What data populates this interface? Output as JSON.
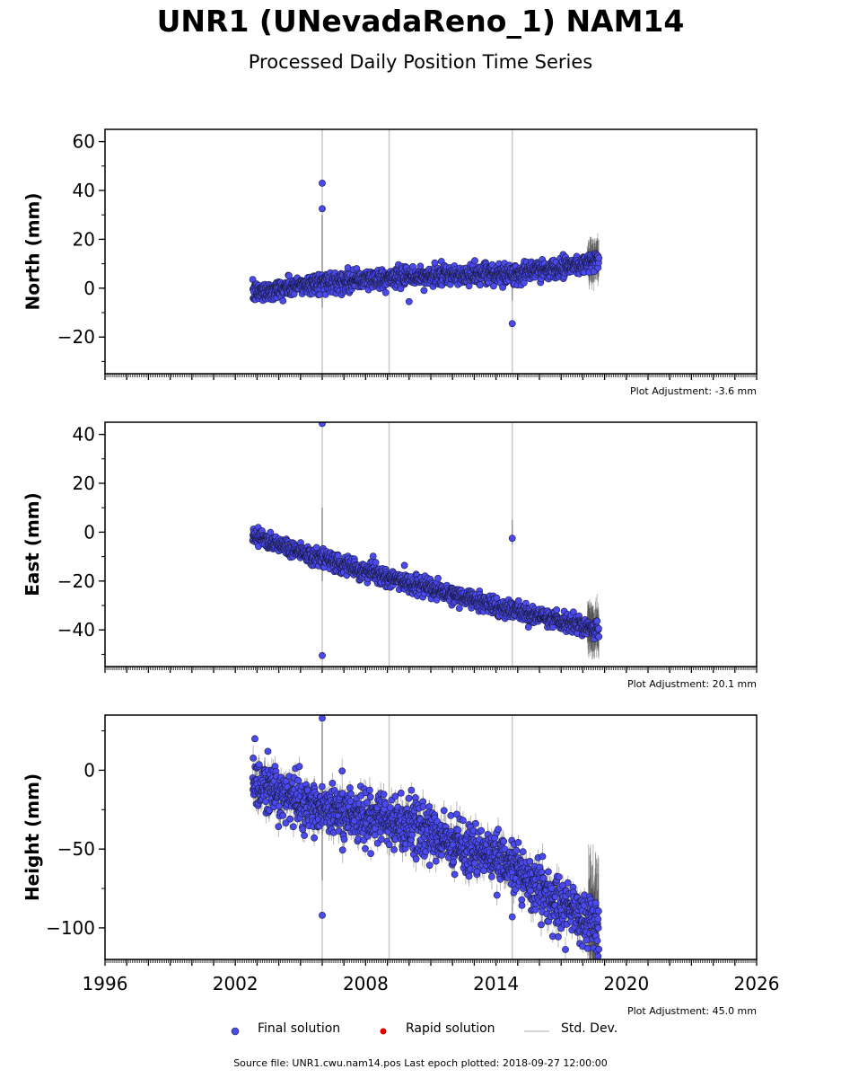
{
  "title": "UNR1 (UNevadaReno_1) NAM14",
  "subtitle": "Processed Daily Position Time Series",
  "source_line": "Source file: UNR1.cwu.nam14.pos  Last epoch plotted: 2018-09-27 12:00:00",
  "legend": {
    "final": "Final solution",
    "rapid": "Rapid solution",
    "std": "Std. Dev.",
    "colors": {
      "final": "#4a4af0",
      "rapid": "#e00000",
      "std": "#c8c8c8"
    }
  },
  "chart_data": [
    {
      "type": "scatter",
      "panel": "north",
      "ylabel": "North (mm)",
      "adjustment": "Plot Adjustment: -3.6 mm",
      "xlim": [
        1996,
        2026
      ],
      "ylim": [
        -35,
        65
      ],
      "yticks": [
        -20,
        0,
        20,
        40,
        60
      ],
      "ytick_labels": [
        "−20",
        "0",
        "20",
        "40",
        "60"
      ],
      "start": 2002.8,
      "end": 2018.74,
      "trend": [
        [
          2002.8,
          -2
        ],
        [
          2006.0,
          2.5
        ],
        [
          2010,
          4.5
        ],
        [
          2015,
          6
        ],
        [
          2018.7,
          11
        ]
      ],
      "scatter": 2.0,
      "sigma": 1.0,
      "noisy_periods": [
        [
          2018.2,
          2018.74,
          7
        ]
      ],
      "outliers": [
        [
          2006.0,
          43
        ],
        [
          2006.0,
          32.5
        ],
        [
          2014.75,
          -14.5
        ],
        [
          2010.0,
          -5.5
        ]
      ],
      "std_spikes": [
        [
          2006.0,
          -8,
          30
        ],
        [
          2014.75,
          -5,
          5
        ]
      ]
    },
    {
      "type": "scatter",
      "panel": "east",
      "ylabel": "East (mm)",
      "adjustment": "Plot Adjustment: 20.1 mm",
      "xlim": [
        1996,
        2026
      ],
      "ylim": [
        -55,
        45
      ],
      "yticks": [
        -40,
        -20,
        0,
        20,
        40
      ],
      "ytick_labels": [
        "−40",
        "−20",
        "0",
        "20",
        "40"
      ],
      "start": 2002.8,
      "end": 2018.74,
      "trend": [
        [
          2002.8,
          -1
        ],
        [
          2006.0,
          -11
        ],
        [
          2010,
          -21
        ],
        [
          2014.75,
          -32
        ],
        [
          2018.7,
          -40
        ]
      ],
      "scatter": 1.8,
      "sigma": 1.2,
      "noisy_periods": [
        [
          2018.2,
          2018.74,
          8
        ]
      ],
      "outliers": [
        [
          2006.0,
          44.5
        ],
        [
          2006.0,
          -50.5
        ],
        [
          2014.75,
          -2.5
        ]
      ],
      "std_spikes": [
        [
          2006.0,
          -20,
          10
        ],
        [
          2014.75,
          -5,
          5
        ]
      ]
    },
    {
      "type": "scatter",
      "panel": "height",
      "ylabel": "Height (mm)",
      "adjustment": "Plot Adjustment: 45.0 mm",
      "xlim": [
        1996,
        2026
      ],
      "ylim": [
        -120,
        35
      ],
      "yticks": [
        -100,
        -50,
        0
      ],
      "ytick_labels": [
        "−100",
        "−50",
        "0"
      ],
      "xticks": [
        1996,
        2002,
        2008,
        2014,
        2020,
        2026
      ],
      "start": 2002.8,
      "end": 2018.74,
      "trend": [
        [
          2002.8,
          -8
        ],
        [
          2006.0,
          -24
        ],
        [
          2010,
          -35
        ],
        [
          2014.75,
          -60
        ],
        [
          2016.5,
          -80
        ],
        [
          2018.7,
          -100
        ]
      ],
      "scatter": 8,
      "sigma": 6,
      "noisy_periods": [
        [
          2018.25,
          2018.74,
          30
        ]
      ],
      "outliers": [
        [
          2006.0,
          33
        ],
        [
          2006.0,
          -92
        ],
        [
          2002.9,
          20
        ],
        [
          2003.5,
          12
        ],
        [
          2014.75,
          -93
        ],
        [
          2018.7,
          -118
        ]
      ],
      "std_spikes": [
        [
          2006.0,
          -70,
          30
        ],
        [
          2014.75,
          -90,
          -50
        ]
      ]
    }
  ]
}
